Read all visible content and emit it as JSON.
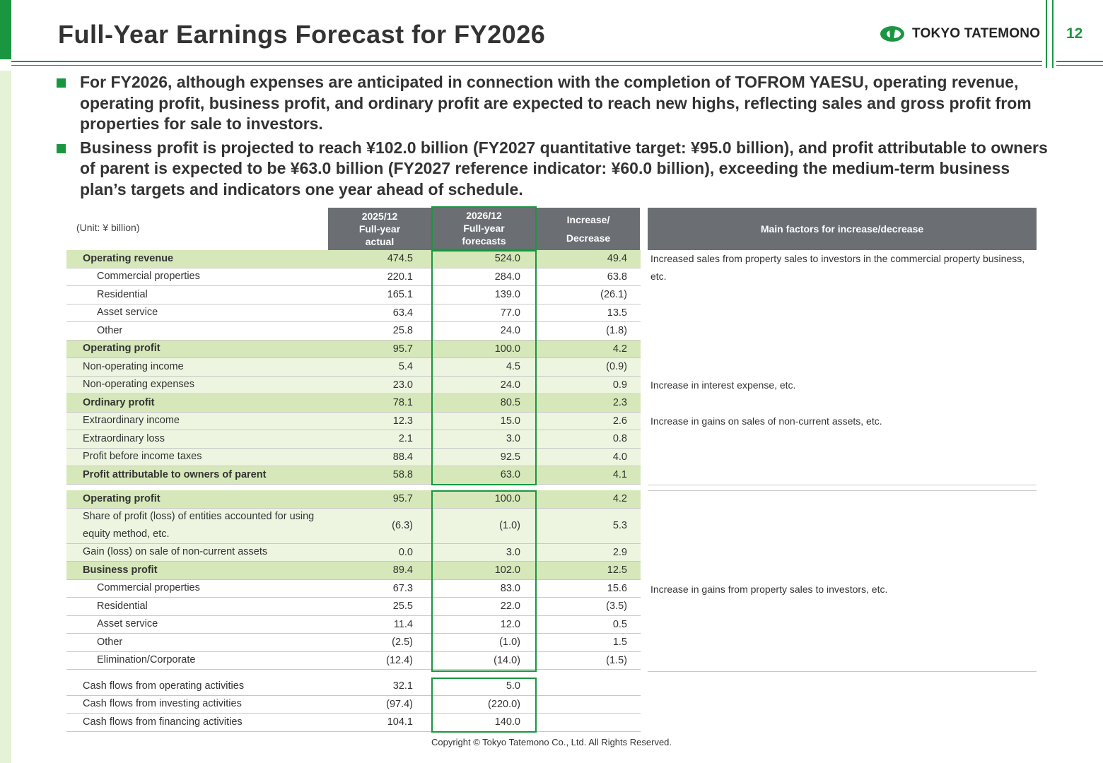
{
  "header": {
    "title": "Full-Year Earnings Forecast for FY2026",
    "brand": "TOKYO TATEMONO",
    "page_number": "12"
  },
  "bullets": [
    "For FY2026, although expenses are anticipated in connection with the completion of TOFROM YAESU, operating revenue, operating profit, business profit, and ordinary profit are expected to reach new highs, reflecting sales and gross profit from properties for sale to investors.",
    "Business profit is projected to reach ¥102.0 billion (FY2027 quantitative target: ¥95.0 billion), and profit attributable to owners of parent is expected to be ¥63.0 billion (FY2027 reference indicator: ¥60.0 billion), exceeding the medium-term business plan’s targets and indicators one year ahead of schedule."
  ],
  "table": {
    "unit": "(Unit: ¥ billion)",
    "col_actual": [
      "2025/12",
      "Full-year",
      "actual"
    ],
    "col_forecast": [
      "2026/12",
      "Full-year",
      "forecasts"
    ],
    "col_change": [
      "Increase/",
      "Decrease"
    ],
    "col_factors": "Main factors for increase/decrease",
    "section1": [
      {
        "label": "Operating revenue",
        "a": "474.5",
        "f": "524.0",
        "d": "49.4",
        "style": "hl",
        "indent": 0
      },
      {
        "label": "Commercial properties",
        "a": "220.1",
        "f": "284.0",
        "d": "63.8",
        "style": "",
        "indent": 1
      },
      {
        "label": "Residential",
        "a": "165.1",
        "f": "139.0",
        "d": "(26.1)",
        "style": "",
        "indent": 1
      },
      {
        "label": "Asset service",
        "a": "63.4",
        "f": "77.0",
        "d": "13.5",
        "style": "",
        "indent": 1
      },
      {
        "label": "Other",
        "a": "25.8",
        "f": "24.0",
        "d": "(1.8)",
        "style": "",
        "indent": 1
      },
      {
        "label": "Operating profit",
        "a": "95.7",
        "f": "100.0",
        "d": "4.2",
        "style": "hl",
        "indent": 0
      },
      {
        "label": "Non-operating income",
        "a": "5.4",
        "f": "4.5",
        "d": "(0.9)",
        "style": "lt",
        "indent": 0
      },
      {
        "label": "Non-operating expenses",
        "a": "23.0",
        "f": "24.0",
        "d": "0.9",
        "style": "lt",
        "indent": 0
      },
      {
        "label": "Ordinary profit",
        "a": "78.1",
        "f": "80.5",
        "d": "2.3",
        "style": "hl",
        "indent": 0
      },
      {
        "label": "Extraordinary income",
        "a": "12.3",
        "f": "15.0",
        "d": "2.6",
        "style": "lt",
        "indent": 0
      },
      {
        "label": "Extraordinary loss",
        "a": "2.1",
        "f": "3.0",
        "d": "0.8",
        "style": "lt",
        "indent": 0
      },
      {
        "label": "Profit before income taxes",
        "a": "88.4",
        "f": "92.5",
        "d": "4.0",
        "style": "lt",
        "indent": 0
      },
      {
        "label": "Profit attributable to owners of parent",
        "a": "58.8",
        "f": "63.0",
        "d": "4.1",
        "style": "hl",
        "indent": 0
      }
    ],
    "section2": [
      {
        "label": "Operating profit",
        "a": "95.7",
        "f": "100.0",
        "d": "4.2",
        "style": "hl",
        "indent": 0
      },
      {
        "label": "Share of profit (loss) of entities accounted for using equity method, etc.",
        "a": "(6.3)",
        "f": "(1.0)",
        "d": "5.3",
        "style": "lt",
        "indent": 0
      },
      {
        "label": "Gain (loss) on sale of non-current assets",
        "a": "0.0",
        "f": "3.0",
        "d": "2.9",
        "style": "lt",
        "indent": 0
      },
      {
        "label": "Business profit",
        "a": "89.4",
        "f": "102.0",
        "d": "12.5",
        "style": "hl",
        "indent": 0
      },
      {
        "label": "Commercial properties",
        "a": "67.3",
        "f": "83.0",
        "d": "15.6",
        "style": "",
        "indent": 1
      },
      {
        "label": "Residential",
        "a": "25.5",
        "f": "22.0",
        "d": "(3.5)",
        "style": "",
        "indent": 1
      },
      {
        "label": "Asset service",
        "a": "11.4",
        "f": "12.0",
        "d": "0.5",
        "style": "",
        "indent": 1
      },
      {
        "label": "Other",
        "a": "(2.5)",
        "f": "(1.0)",
        "d": "1.5",
        "style": "",
        "indent": 1
      },
      {
        "label": "Elimination/Corporate",
        "a": "(12.4)",
        "f": "(14.0)",
        "d": "(1.5)",
        "style": "",
        "indent": 1
      }
    ],
    "section3": [
      {
        "label": "Cash flows from operating activities",
        "a": "32.1",
        "f": "5.0",
        "d": "",
        "style": "",
        "indent": 0
      },
      {
        "label": "Cash flows from investing activities",
        "a": "(97.4)",
        "f": "(220.0)",
        "d": "",
        "style": "",
        "indent": 0
      },
      {
        "label": "Cash flows from financing activities",
        "a": "104.1",
        "f": "140.0",
        "d": "",
        "style": "",
        "indent": 0
      }
    ],
    "notes": {
      "operating_revenue": "Increased sales from property sales to investors in the commercial property business, etc.",
      "non_operating_expenses": "Increase in interest expense, etc.",
      "extraordinary_income": "Increase in gains on sales of non-current assets, etc.",
      "commercial_properties": "Increase in gains from property sales to investors, etc."
    }
  },
  "footer": {
    "copyright": "Copyright © Tokyo Tatemono Co., Ltd. All Rights Reserved."
  },
  "colors": {
    "brand_green": "#1a9641",
    "header_gray": "#6b6f74",
    "highlight_row": "#d6e8b9",
    "light_row": "#edf5e1"
  }
}
